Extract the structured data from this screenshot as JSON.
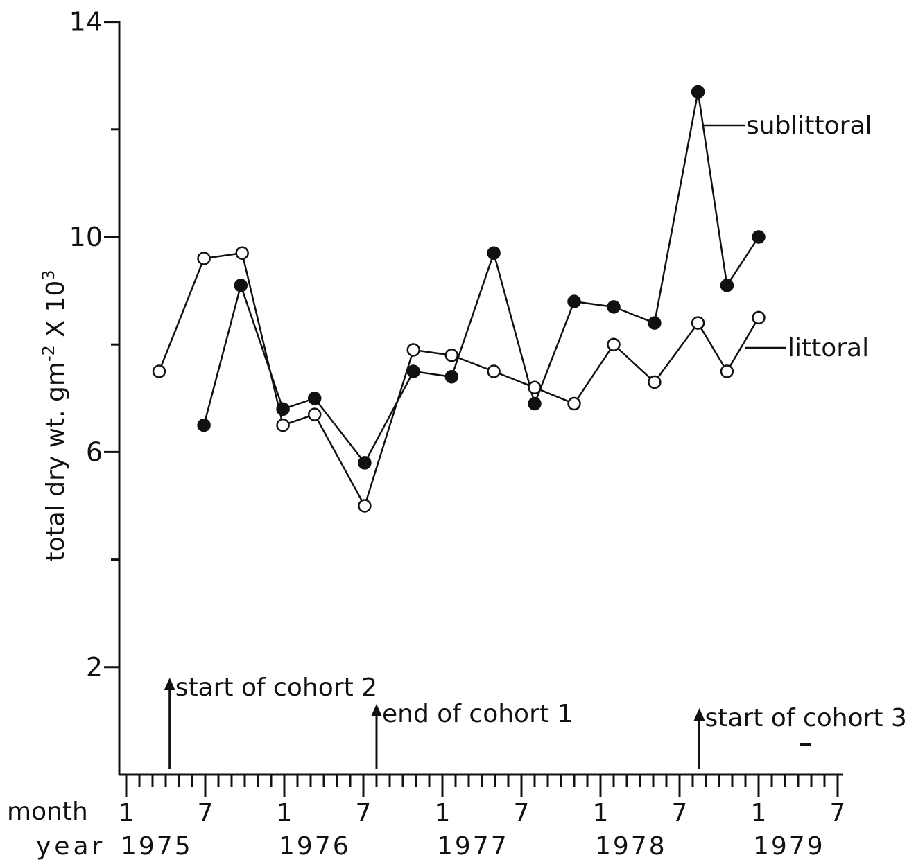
{
  "chart_data": {
    "type": "line",
    "ylabel": "total dry wt.  gm",
    "ylabel_sup1": "-2",
    "ylabel_mid": " X 10",
    "ylabel_sup2": "3",
    "ylim": [
      0,
      14
    ],
    "y_ticks": [
      2,
      6,
      10,
      14
    ],
    "y_tick_labels": [
      "2",
      "6",
      "10",
      "14"
    ],
    "x_axis_unit": "months since January 1975",
    "x_row_labels": {
      "month": "month",
      "year": "year"
    },
    "month_ticks": [
      {
        "x": 0,
        "label": "1"
      },
      {
        "x": 6,
        "label": "7"
      },
      {
        "x": 12,
        "label": "1"
      },
      {
        "x": 18,
        "label": "7"
      },
      {
        "x": 24,
        "label": "1"
      },
      {
        "x": 30,
        "label": "7"
      },
      {
        "x": 36,
        "label": "1"
      },
      {
        "x": 42,
        "label": "7"
      },
      {
        "x": 48,
        "label": "1"
      },
      {
        "x": 54,
        "label": "7"
      }
    ],
    "year_ticks": [
      {
        "x": 0,
        "label": "1975"
      },
      {
        "x": 12,
        "label": "1976"
      },
      {
        "x": 24,
        "label": "1977"
      },
      {
        "x": 36,
        "label": "1978"
      },
      {
        "x": 48,
        "label": "1979"
      }
    ],
    "series": [
      {
        "name": "sublittoral",
        "marker": "filled-circle",
        "color": "#111111",
        "points": [
          [
            5.9,
            6.5
          ],
          [
            8.7,
            9.1
          ],
          [
            11.9,
            6.8
          ],
          [
            14.3,
            7.0
          ],
          [
            18.1,
            5.8
          ],
          [
            21.8,
            7.5
          ],
          [
            24.7,
            7.4
          ],
          [
            27.9,
            9.7
          ],
          [
            31.0,
            6.9
          ],
          [
            34.0,
            8.8
          ],
          [
            37.0,
            8.7
          ],
          [
            40.1,
            8.4
          ],
          [
            43.4,
            12.7
          ],
          [
            45.6,
            9.1
          ],
          [
            48.0,
            10.0
          ]
        ]
      },
      {
        "name": "littoral",
        "marker": "open-circle",
        "color": "#111111",
        "points": [
          [
            2.5,
            7.5
          ],
          [
            5.9,
            9.6
          ],
          [
            8.8,
            9.7
          ],
          [
            11.9,
            6.5
          ],
          [
            14.3,
            6.7
          ],
          [
            18.1,
            5.0
          ],
          [
            21.8,
            7.9
          ],
          [
            24.7,
            7.8
          ],
          [
            27.9,
            7.5
          ],
          [
            31.0,
            7.2
          ],
          [
            34.0,
            6.9
          ],
          [
            37.0,
            8.0
          ],
          [
            40.1,
            7.3
          ],
          [
            43.4,
            8.4
          ],
          [
            45.6,
            7.5
          ],
          [
            48.0,
            8.5
          ]
        ]
      }
    ],
    "annotations": [
      {
        "text": "start of cohort 2",
        "x": 3.3
      },
      {
        "text": "end of cohort 1",
        "x": 19.0
      },
      {
        "text": "start of cohort 3",
        "x": 43.5
      }
    ],
    "grid": false,
    "legend": "series labels at right end of lines"
  }
}
